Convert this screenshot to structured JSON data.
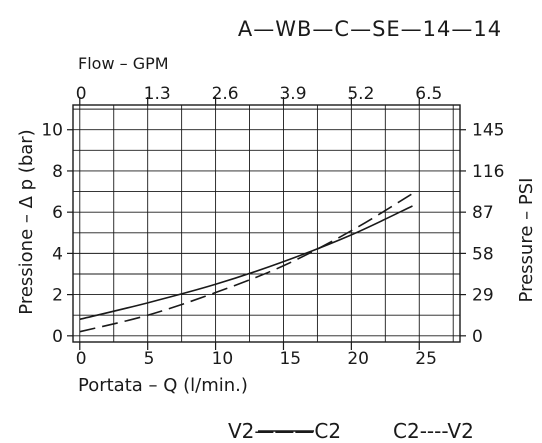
{
  "chart_data": {
    "type": "line",
    "title": "A—WB—C—SE—14—14",
    "xlabel": "Portata  –  Q  (l/min.)",
    "ylabel": "Pressione  –  Δ p  (bar)",
    "x2label": "Flow – GPM",
    "y2label": "Pressure  –  PSI",
    "xlim": [
      -0.5,
      28
    ],
    "ylim": [
      -0.3,
      11.2
    ],
    "x_ticks": [
      "0",
      "5",
      "10",
      "15",
      "20",
      "25"
    ],
    "x_tick_values": [
      0,
      5,
      10,
      15,
      20,
      25
    ],
    "y_ticks": [
      "0",
      "2",
      "4",
      "6",
      "8",
      "10"
    ],
    "y_tick_values": [
      0,
      2,
      4,
      6,
      8,
      10
    ],
    "x2_ticks": [
      "0",
      "1.3",
      "2.6",
      "3.9",
      "5.2",
      "6.5"
    ],
    "y2_ticks": [
      "0",
      "29",
      "58",
      "87",
      "116",
      "145"
    ],
    "grid": true,
    "series": [
      {
        "name": "V2———C2",
        "style": "solid",
        "x": [
          0,
          5,
          10,
          15,
          20,
          24.5
        ],
        "y": [
          0.8,
          1.6,
          2.5,
          3.6,
          4.9,
          6.3
        ]
      },
      {
        "name": "C2----V2",
        "style": "dashed",
        "x": [
          0,
          5,
          10,
          15,
          20,
          24.5
        ],
        "y": [
          0.2,
          1.0,
          2.1,
          3.4,
          5.1,
          6.9
        ]
      }
    ]
  },
  "legend": {
    "solid_label": "V2———C2",
    "dashed_label": "C2----V2"
  },
  "colors": {
    "ink": "#1a1a1a",
    "background": "#ffffff"
  }
}
